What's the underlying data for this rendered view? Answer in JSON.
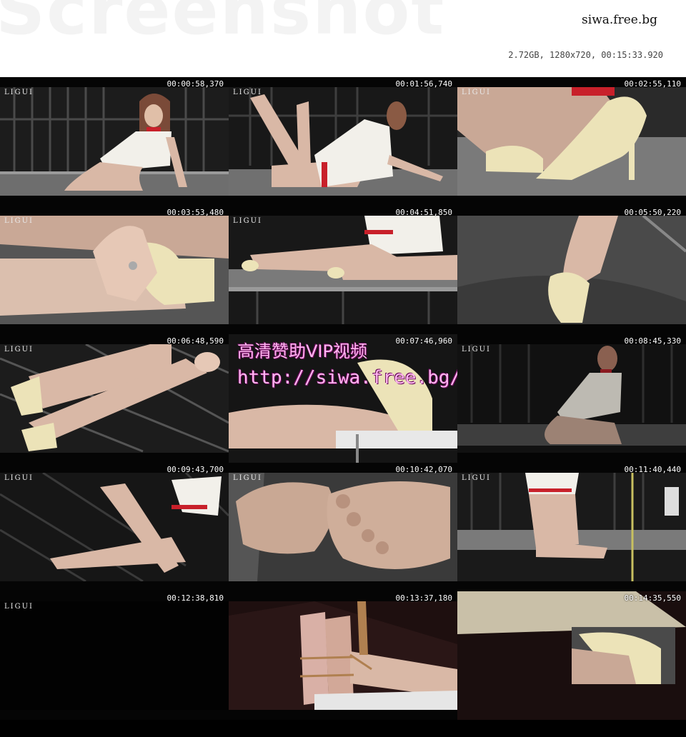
{
  "header": {
    "watermark": "Screenshot",
    "site": "siwa.free.bg",
    "file_info": "2.72GB, 1280x720, 00:15:33.920"
  },
  "logo_text": "LIGUI",
  "overlay": {
    "title": "高清赞助VIP视频",
    "url": "http://siwa.free.bg/"
  },
  "thumbnails": [
    {
      "timestamp": "00:00:58,370"
    },
    {
      "timestamp": "00:01:56,740"
    },
    {
      "timestamp": "00:02:55,110"
    },
    {
      "timestamp": "00:03:53,480"
    },
    {
      "timestamp": "00:04:51,850"
    },
    {
      "timestamp": "00:05:50,220"
    },
    {
      "timestamp": "00:06:48,590"
    },
    {
      "timestamp": "00:07:46,960"
    },
    {
      "timestamp": "00:08:45,330"
    },
    {
      "timestamp": "00:09:43,700"
    },
    {
      "timestamp": "00:10:42,070"
    },
    {
      "timestamp": "00:11:40,440"
    },
    {
      "timestamp": "00:12:38,810"
    },
    {
      "timestamp": "00:13:37,180"
    },
    {
      "timestamp": "00:14:35,550"
    }
  ],
  "colors": {
    "overlay_text": "#ffb6f0",
    "skin": "#d9b8a6",
    "dress": "#f2f0ea",
    "accent_red": "#c8202a",
    "shoe": "#ece3b8"
  }
}
